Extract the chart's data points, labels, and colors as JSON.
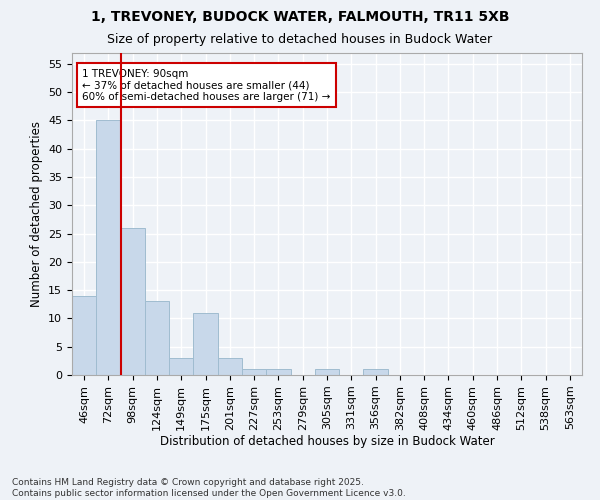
{
  "title1": "1, TREVONEY, BUDOCK WATER, FALMOUTH, TR11 5XB",
  "title2": "Size of property relative to detached houses in Budock Water",
  "xlabel": "Distribution of detached houses by size in Budock Water",
  "ylabel": "Number of detached properties",
  "categories": [
    "46sqm",
    "72sqm",
    "98sqm",
    "124sqm",
    "149sqm",
    "175sqm",
    "201sqm",
    "227sqm",
    "253sqm",
    "279sqm",
    "305sqm",
    "331sqm",
    "356sqm",
    "382sqm",
    "408sqm",
    "434sqm",
    "460sqm",
    "486sqm",
    "512sqm",
    "538sqm",
    "563sqm"
  ],
  "values": [
    14,
    45,
    26,
    13,
    3,
    11,
    3,
    1,
    1,
    0,
    1,
    0,
    1,
    0,
    0,
    0,
    0,
    0,
    0,
    0,
    0
  ],
  "bar_color": "#c8d8ea",
  "bar_edge_color": "#a0bcd0",
  "bar_width": 1.0,
  "vline_x": 1.5,
  "vline_color": "#cc0000",
  "annotation_text": "1 TREVONEY: 90sqm\n← 37% of detached houses are smaller (44)\n60% of semi-detached houses are larger (71) →",
  "annotation_box_color": "#ffffff",
  "annotation_box_edge": "#cc0000",
  "ylim": [
    0,
    57
  ],
  "yticks": [
    0,
    5,
    10,
    15,
    20,
    25,
    30,
    35,
    40,
    45,
    50,
    55
  ],
  "footer": "Contains HM Land Registry data © Crown copyright and database right 2025.\nContains public sector information licensed under the Open Government Licence v3.0.",
  "background_color": "#eef2f7",
  "grid_color": "#ffffff",
  "title_fontsize": 10,
  "subtitle_fontsize": 9,
  "axis_label_fontsize": 8.5,
  "tick_fontsize": 8,
  "annotation_fontsize": 7.5,
  "footer_fontsize": 6.5
}
